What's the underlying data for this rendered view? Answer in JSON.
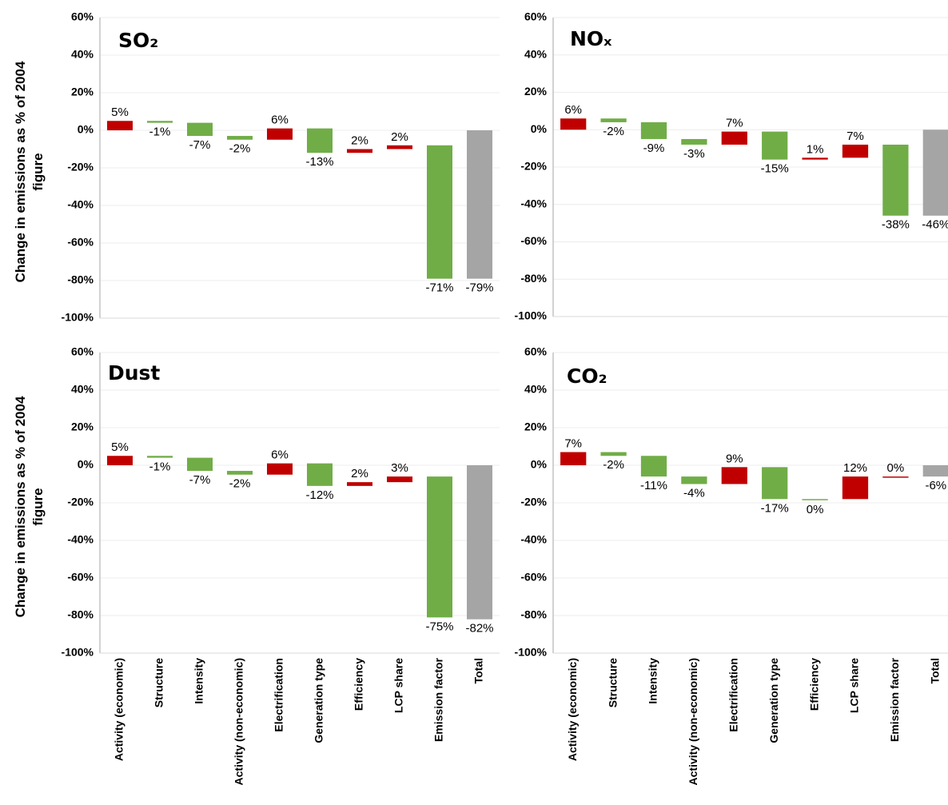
{
  "chart_data": [
    {
      "type": "waterfall",
      "title": "SO₂",
      "ylabel": "Change in emissions as % of 2004 figure",
      "values": [
        5,
        -1,
        -7,
        -2,
        6,
        -13,
        2,
        2,
        -71,
        -79
      ],
      "value_labels": [
        "5%",
        "-1%",
        "-7%",
        "-2%",
        "6%",
        "-13%",
        "2%",
        "2%",
        "-71%",
        "-79%"
      ],
      "colors": [
        "#c00000",
        "#70ad47",
        "#70ad47",
        "#70ad47",
        "#c00000",
        "#70ad47",
        "#c00000",
        "#c00000",
        "#70ad47",
        "#a5a5a5"
      ],
      "ylim": [
        -100,
        60
      ],
      "yticks": [
        {
          "value": 60,
          "label": "60%"
        },
        {
          "value": 40,
          "label": "40%"
        },
        {
          "value": 20,
          "label": "20%"
        },
        {
          "value": 0,
          "label": "0%"
        },
        {
          "value": -20,
          "label": "-20%"
        },
        {
          "value": -40,
          "label": "-40%"
        },
        {
          "value": -60,
          "label": "-60%"
        },
        {
          "value": -80,
          "label": "-80%"
        },
        {
          "value": -100,
          "label": "-100%"
        }
      ],
      "grid": true
    },
    {
      "type": "waterfall",
      "title": "NOₓ",
      "values": [
        6,
        -2,
        -9,
        -3,
        7,
        -15,
        1,
        7,
        -38,
        -46
      ],
      "value_labels": [
        "6%",
        "-2%",
        "-9%",
        "-3%",
        "7%",
        "-15%",
        "1%",
        "7%",
        "-38%",
        "-46%"
      ],
      "colors": [
        "#c00000",
        "#70ad47",
        "#70ad47",
        "#70ad47",
        "#c00000",
        "#70ad47",
        "#c00000",
        "#c00000",
        "#70ad47",
        "#a5a5a5"
      ],
      "ylim": [
        -100,
        60
      ],
      "yticks": [
        {
          "value": 60,
          "label": "60%"
        },
        {
          "value": 40,
          "label": "40%"
        },
        {
          "value": 20,
          "label": "20%"
        },
        {
          "value": 0,
          "label": "0%"
        },
        {
          "value": -20,
          "label": "-20%"
        },
        {
          "value": -40,
          "label": "-40%"
        },
        {
          "value": -60,
          "label": "-60%"
        },
        {
          "value": -80,
          "label": "-80%"
        },
        {
          "value": -100,
          "label": "-100%"
        }
      ],
      "grid": true
    },
    {
      "type": "waterfall",
      "title": "Dust",
      "ylabel": "Change in emissions as % of 2004 figure",
      "categories": [
        "Activity (economic)",
        "Structure",
        "Intensity",
        "Activity (non-economic)",
        "Electrification",
        "Generation type",
        "Efficiency",
        "LCP share",
        "Emission factor",
        "Total"
      ],
      "values": [
        5,
        -1,
        -7,
        -2,
        6,
        -12,
        2,
        3,
        -75,
        -82
      ],
      "value_labels": [
        "5%",
        "-1%",
        "-7%",
        "-2%",
        "6%",
        "-12%",
        "2%",
        "3%",
        "-75%",
        "-82%"
      ],
      "colors": [
        "#c00000",
        "#70ad47",
        "#70ad47",
        "#70ad47",
        "#c00000",
        "#70ad47",
        "#c00000",
        "#c00000",
        "#70ad47",
        "#a5a5a5"
      ],
      "ylim": [
        -100,
        60
      ],
      "yticks": [
        {
          "value": 60,
          "label": "60%"
        },
        {
          "value": 40,
          "label": "40%"
        },
        {
          "value": 20,
          "label": "20%"
        },
        {
          "value": 0,
          "label": "0%"
        },
        {
          "value": -20,
          "label": "-20%"
        },
        {
          "value": -40,
          "label": "-40%"
        },
        {
          "value": -60,
          "label": "-60%"
        },
        {
          "value": -80,
          "label": "-80%"
        },
        {
          "value": -100,
          "label": "-100%"
        }
      ],
      "grid": true
    },
    {
      "type": "waterfall",
      "title": "CO₂",
      "categories": [
        "Activity (economic)",
        "Structure",
        "Intensity",
        "Activity (non-economic)",
        "Electrification",
        "Generation type",
        "Efficiency",
        "LCP share",
        "Emission factor",
        "Total"
      ],
      "values": [
        7,
        -2,
        -11,
        -4,
        9,
        -17,
        0,
        12,
        0,
        -6
      ],
      "value_labels": [
        "7%",
        "-2%",
        "-11%",
        "-4%",
        "9%",
        "-17%",
        "0%",
        "12%",
        "0%",
        "-6%"
      ],
      "colors": [
        "#c00000",
        "#70ad47",
        "#70ad47",
        "#70ad47",
        "#c00000",
        "#70ad47",
        "#70ad47",
        "#c00000",
        "#c00000",
        "#a5a5a5"
      ],
      "ylim": [
        -100,
        60
      ],
      "yticks": [
        {
          "value": 60,
          "label": "60%"
        },
        {
          "value": 40,
          "label": "40%"
        },
        {
          "value": 20,
          "label": "20%"
        },
        {
          "value": 0,
          "label": "0%"
        },
        {
          "value": -20,
          "label": "-20%"
        },
        {
          "value": -40,
          "label": "-40%"
        },
        {
          "value": -60,
          "label": "-60%"
        },
        {
          "value": -80,
          "label": "-80%"
        },
        {
          "value": -100,
          "label": "-100%"
        }
      ],
      "grid": true
    }
  ]
}
